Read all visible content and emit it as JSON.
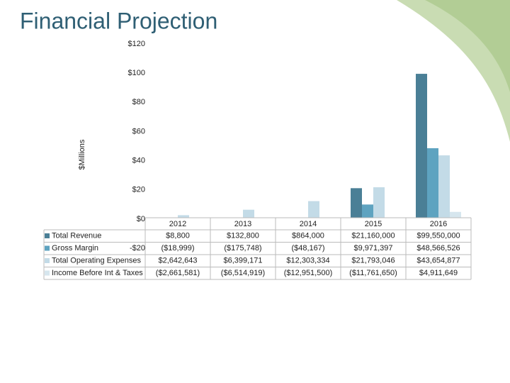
{
  "chart_data": {
    "type": "bar",
    "title": "Financial Projection",
    "y_label": "$Millions",
    "categories": [
      "2012",
      "2013",
      "2014",
      "2015",
      "2016"
    ],
    "series": [
      {
        "name": "Total Revenue",
        "color": "#4a7f96",
        "values": [
          0.0088,
          0.1328,
          0.864,
          21.16,
          99.55
        ],
        "value_labels": [
          "$8,800",
          "$132,800",
          "$864,000",
          "$21,160,000",
          "$99,550,000"
        ]
      },
      {
        "name": "Gross Margin",
        "color": "#5ea3c0",
        "values": [
          -0.018999,
          -0.175748,
          -0.048167,
          9.971397,
          48.566526
        ],
        "value_labels": [
          "($18,999)",
          "($175,748)",
          "($48,167)",
          "$9,971,397",
          "$48,566,526"
        ]
      },
      {
        "name": "Total Operating Expenses",
        "color": "#c3dbe7",
        "values": [
          2.642643,
          6.399171,
          12.303334,
          21.793046,
          43.654877
        ],
        "value_labels": [
          "$2,642,643",
          "$6,399,171",
          "$12,303,334",
          "$21,793,046",
          "$43,654,877"
        ]
      },
      {
        "name": "Income Before Int & Taxes",
        "color": "#d6e6ee",
        "values": [
          -2.661581,
          -6.514919,
          -12.9515,
          -11.76165,
          4.911649
        ],
        "value_labels": [
          "($2,661,581)",
          "($6,514,919)",
          "($12,951,500)",
          "($11,761,650)",
          "$4,911,649"
        ]
      }
    ],
    "ylim": [
      -20,
      120
    ],
    "yticks": [
      {
        "value": -20,
        "label": "-$20"
      },
      {
        "value": 0,
        "label": "$0"
      },
      {
        "value": 20,
        "label": "$20"
      },
      {
        "value": 40,
        "label": "$40"
      },
      {
        "value": 60,
        "label": "$60"
      },
      {
        "value": 80,
        "label": "$80"
      },
      {
        "value": 100,
        "label": "$100"
      },
      {
        "value": 120,
        "label": "$120"
      }
    ],
    "grid": false
  }
}
